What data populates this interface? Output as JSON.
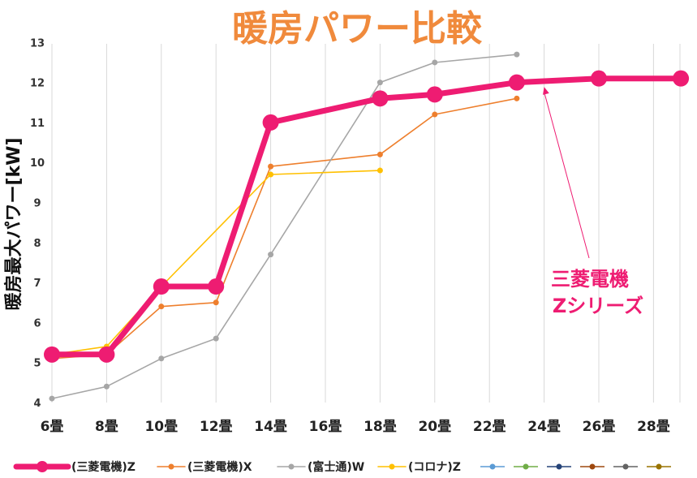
{
  "chart_data": {
    "type": "line",
    "title": "暖房パワー比較",
    "ylabel": "暖房最大パワー[kW]",
    "xlabel": "",
    "ylim": [
      4,
      13
    ],
    "yticks": [
      4,
      5,
      6,
      7,
      8,
      9,
      10,
      11,
      12,
      13
    ],
    "categories": [
      "6畳",
      "8畳",
      "10畳",
      "12畳",
      "14畳",
      "16畳",
      "18畳",
      "20畳",
      "22畳",
      "24畳",
      "26畳",
      "28畳"
    ],
    "grid": "vertical",
    "legend_position": "bottom",
    "series": [
      {
        "name": "(三菱電機)Z",
        "color": "#ee1c72",
        "emphasis": true,
        "points": [
          [
            6,
            5.2
          ],
          [
            8,
            5.2
          ],
          [
            10,
            6.9
          ],
          [
            12,
            6.9
          ],
          [
            14,
            11.0
          ],
          [
            18,
            11.6
          ],
          [
            20,
            11.7
          ],
          [
            23,
            12.0
          ],
          [
            26,
            12.1
          ],
          [
            29,
            12.1
          ]
        ]
      },
      {
        "name": "(三菱電機)X",
        "color": "#ee7f2d",
        "points": [
          [
            6,
            5.1
          ],
          [
            8,
            5.2
          ],
          [
            10,
            6.4
          ],
          [
            12,
            6.5
          ],
          [
            14,
            9.9
          ],
          [
            18,
            10.2
          ],
          [
            20,
            11.2
          ],
          [
            23,
            11.6
          ]
        ]
      },
      {
        "name": "(富士通)W",
        "color": "#a6a6a6",
        "points": [
          [
            6,
            4.1
          ],
          [
            8,
            4.4
          ],
          [
            10,
            5.1
          ],
          [
            12,
            5.6
          ],
          [
            14,
            7.7
          ],
          [
            18,
            12.0
          ],
          [
            20,
            12.5
          ],
          [
            23,
            12.7
          ]
        ]
      },
      {
        "name": "(コロナ)Z",
        "color": "#ffc000",
        "points": [
          [
            6,
            5.2
          ],
          [
            8,
            5.4
          ],
          [
            10,
            6.9
          ],
          [
            14,
            9.7
          ],
          [
            18,
            9.8
          ]
        ]
      }
    ],
    "empty_legend_series": [
      {
        "color": "#5b9bd5"
      },
      {
        "color": "#70ad47"
      },
      {
        "color": "#264478"
      },
      {
        "color": "#9e480e"
      },
      {
        "color": "#636363"
      },
      {
        "color": "#997300"
      }
    ],
    "annotation": {
      "lines": [
        "三菱電機",
        "Zシリーズ"
      ],
      "target": [
        24,
        12.05
      ]
    }
  }
}
